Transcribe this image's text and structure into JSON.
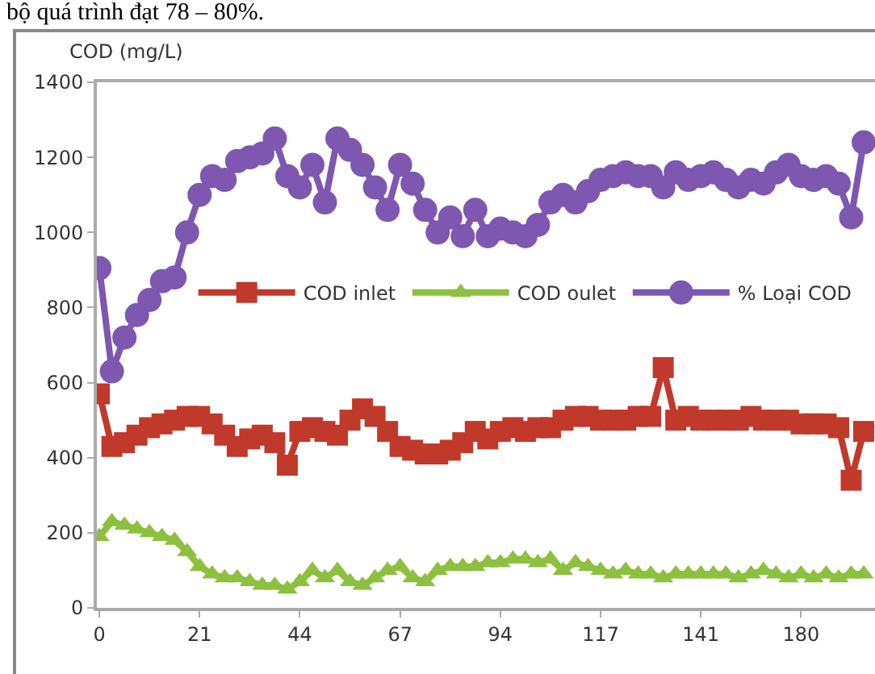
{
  "chart_data": {
    "type": "line",
    "annotations": [
      "bộ quá trình đạt 78 – 80%."
    ],
    "ylabel": "COD (mg/L)",
    "categories": [
      "0",
      null,
      null,
      null,
      null,
      null,
      null,
      null,
      "21",
      null,
      null,
      null,
      null,
      null,
      null,
      null,
      "44",
      null,
      null,
      null,
      null,
      null,
      null,
      null,
      "67",
      null,
      null,
      null,
      null,
      null,
      null,
      null,
      "94",
      null,
      null,
      null,
      null,
      null,
      null,
      null,
      "117",
      null,
      null,
      null,
      null,
      null,
      null,
      null,
      "141",
      null,
      null,
      null,
      null,
      null,
      null,
      null,
      "180",
      null,
      null,
      null,
      null,
      null
    ],
    "ylim": [
      0,
      1400
    ],
    "yticks": [
      0,
      200,
      400,
      600,
      800,
      1000,
      1200,
      1400
    ],
    "grid": false,
    "legend": "center",
    "series": [
      {
        "name": "COD inlet",
        "color": "#c0392b",
        "marker": "square",
        "values": [
          570,
          430,
          440,
          460,
          480,
          490,
          500,
          510,
          510,
          490,
          460,
          430,
          450,
          460,
          440,
          380,
          470,
          480,
          470,
          460,
          500,
          530,
          510,
          470,
          430,
          420,
          410,
          410,
          420,
          440,
          470,
          450,
          470,
          480,
          470,
          480,
          480,
          500,
          510,
          510,
          500,
          500,
          500,
          510,
          510,
          640,
          500,
          510,
          500,
          500,
          500,
          500,
          510,
          500,
          500,
          500,
          490,
          490,
          490,
          480,
          340,
          470
        ]
      },
      {
        "name": "COD oulet",
        "color": "#8dc03f",
        "marker": "triangle",
        "values": [
          190,
          230,
          220,
          210,
          200,
          190,
          180,
          150,
          110,
          90,
          80,
          80,
          70,
          60,
          60,
          50,
          70,
          100,
          80,
          100,
          70,
          60,
          80,
          100,
          110,
          80,
          70,
          100,
          110,
          110,
          110,
          120,
          120,
          130,
          130,
          120,
          130,
          100,
          120,
          110,
          100,
          90,
          100,
          90,
          90,
          80,
          90,
          90,
          90,
          90,
          90,
          80,
          90,
          100,
          90,
          80,
          90,
          80,
          90,
          80,
          90,
          90
        ]
      },
      {
        "name": "% Loại COD",
        "color": "#7e57b0",
        "marker": "circle",
        "values": [
          905,
          630,
          720,
          780,
          820,
          870,
          880,
          1000,
          1100,
          1150,
          1140,
          1190,
          1200,
          1210,
          1250,
          1150,
          1120,
          1180,
          1080,
          1250,
          1220,
          1180,
          1120,
          1060,
          1180,
          1130,
          1060,
          1000,
          1040,
          990,
          1060,
          990,
          1010,
          1000,
          990,
          1020,
          1080,
          1100,
          1080,
          1110,
          1140,
          1150,
          1160,
          1150,
          1150,
          1120,
          1160,
          1140,
          1150,
          1160,
          1140,
          1120,
          1140,
          1130,
          1160,
          1180,
          1150,
          1140,
          1150,
          1130,
          1040,
          1240
        ]
      }
    ]
  }
}
